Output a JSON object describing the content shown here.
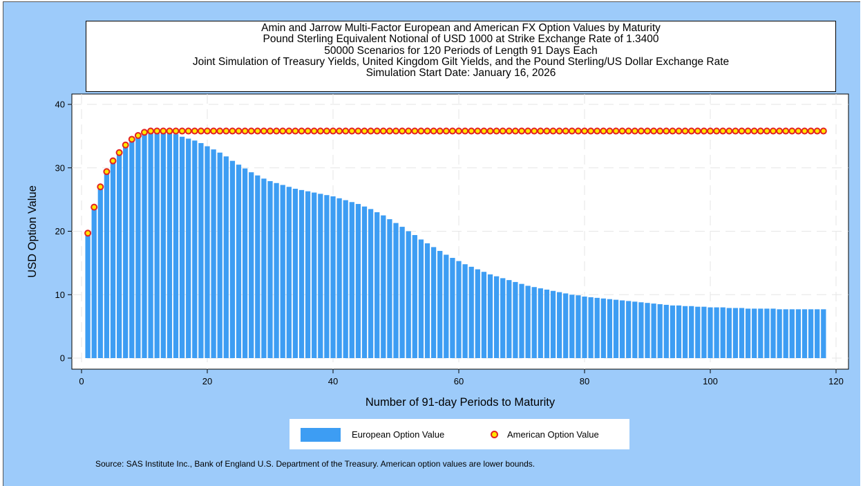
{
  "title_lines": [
    "Amin and Jarrow Multi-Factor European and American FX Option Values by Maturity",
    "Pound Sterling Equivalent Notional of USD 1000 at Strike Exchange Rate of  1.3400",
    "50000 Scenarios for 120 Periods of Length 91 Days Each",
    "Joint Simulation of Treasury Yields, United Kingdom Gilt Yields, and the Pound Sterling/US Dollar Exchange Rate",
    "Simulation Start Date: January 16, 2026"
  ],
  "chart_data": {
    "type": "bar",
    "xlabel": "Number of 91-day Periods to Maturity",
    "ylabel": "USD Option Value",
    "xlim": [
      0,
      120
    ],
    "ylim": [
      0,
      40
    ],
    "x_ticks": [
      "0",
      "20",
      "40",
      "60",
      "80",
      "100",
      "120"
    ],
    "y_ticks": [
      "0",
      "10",
      "20",
      "30",
      "40"
    ],
    "grid": true,
    "legend_position": "bottom",
    "colors": {
      "european": "#3d9df3",
      "american_fill": "#ffe600",
      "american_edge": "#e32222",
      "background": "#9dcbfa",
      "plot_area": "#ffffff"
    },
    "x": [
      1,
      2,
      3,
      4,
      5,
      6,
      7,
      8,
      9,
      10,
      11,
      12,
      13,
      14,
      15,
      16,
      17,
      18,
      19,
      20,
      21,
      22,
      23,
      24,
      25,
      26,
      27,
      28,
      29,
      30,
      31,
      32,
      33,
      34,
      35,
      36,
      37,
      38,
      39,
      40,
      41,
      42,
      43,
      44,
      45,
      46,
      47,
      48,
      49,
      50,
      51,
      52,
      53,
      54,
      55,
      56,
      57,
      58,
      59,
      60,
      61,
      62,
      63,
      64,
      65,
      66,
      67,
      68,
      69,
      70,
      71,
      72,
      73,
      74,
      75,
      76,
      77,
      78,
      79,
      80,
      81,
      82,
      83,
      84,
      85,
      86,
      87,
      88,
      89,
      90,
      91,
      92,
      93,
      94,
      95,
      96,
      97,
      98,
      99,
      100,
      101,
      102,
      103,
      104,
      105,
      106,
      107,
      108,
      109,
      110,
      111,
      112,
      113,
      114,
      115,
      116,
      117,
      118
    ],
    "series": [
      {
        "name": "European Option Value",
        "type": "bar",
        "values": [
          19.7,
          23.8,
          27.0,
          29.4,
          31.1,
          32.4,
          33.5,
          34.4,
          35.0,
          35.5,
          35.7,
          35.8,
          35.8,
          35.6,
          35.3,
          34.9,
          34.6,
          34.3,
          33.9,
          33.4,
          32.9,
          32.4,
          31.8,
          31.1,
          30.5,
          29.9,
          29.3,
          28.8,
          28.3,
          27.9,
          27.6,
          27.3,
          27.0,
          26.7,
          26.5,
          26.3,
          26.1,
          25.9,
          25.7,
          25.5,
          25.2,
          24.9,
          24.6,
          24.3,
          23.9,
          23.5,
          23.0,
          22.5,
          21.9,
          21.3,
          20.7,
          20.0,
          19.4,
          18.7,
          18.1,
          17.5,
          16.9,
          16.3,
          15.8,
          15.3,
          14.8,
          14.4,
          14.0,
          13.6,
          13.2,
          12.9,
          12.6,
          12.3,
          12.0,
          11.7,
          11.4,
          11.2,
          11.0,
          10.8,
          10.6,
          10.4,
          10.2,
          10.0,
          9.9,
          9.7,
          9.6,
          9.5,
          9.4,
          9.3,
          9.2,
          9.1,
          9.0,
          8.9,
          8.8,
          8.7,
          8.6,
          8.5,
          8.4,
          8.3,
          8.3,
          8.2,
          8.2,
          8.1,
          8.1,
          8.0,
          8.0,
          8.0,
          7.9,
          7.9,
          7.9,
          7.8,
          7.8,
          7.8,
          7.8,
          7.8,
          7.7,
          7.7,
          7.7,
          7.7,
          7.7,
          7.7,
          7.7,
          7.7
        ]
      },
      {
        "name": "American Option Value",
        "type": "scatter",
        "values": [
          19.7,
          23.8,
          27.0,
          29.4,
          31.1,
          32.4,
          33.6,
          34.5,
          35.1,
          35.6,
          35.8,
          35.8,
          35.8,
          35.8,
          35.8,
          35.8,
          35.8,
          35.8,
          35.8,
          35.8,
          35.8,
          35.8,
          35.8,
          35.8,
          35.8,
          35.8,
          35.8,
          35.8,
          35.8,
          35.8,
          35.8,
          35.8,
          35.8,
          35.8,
          35.8,
          35.8,
          35.8,
          35.8,
          35.8,
          35.8,
          35.8,
          35.8,
          35.8,
          35.8,
          35.8,
          35.8,
          35.8,
          35.8,
          35.8,
          35.8,
          35.8,
          35.8,
          35.8,
          35.8,
          35.8,
          35.8,
          35.8,
          35.8,
          35.8,
          35.8,
          35.8,
          35.8,
          35.8,
          35.8,
          35.8,
          35.8,
          35.8,
          35.8,
          35.8,
          35.8,
          35.8,
          35.8,
          35.8,
          35.8,
          35.8,
          35.8,
          35.8,
          35.8,
          35.8,
          35.8,
          35.8,
          35.8,
          35.8,
          35.8,
          35.8,
          35.8,
          35.8,
          35.8,
          35.8,
          35.8,
          35.8,
          35.8,
          35.8,
          35.8,
          35.8,
          35.8,
          35.8,
          35.8,
          35.8,
          35.8,
          35.8,
          35.8,
          35.8,
          35.8,
          35.8,
          35.8,
          35.8,
          35.8,
          35.8,
          35.8,
          35.8,
          35.8,
          35.8,
          35.8,
          35.8,
          35.8,
          35.8,
          35.8
        ]
      }
    ]
  },
  "legend": {
    "european_label": "European Option Value",
    "american_label": "American Option Value"
  },
  "source_note": "Source: SAS Institute Inc., Bank of England U.S. Department of the Treasury. American option values are lower bounds."
}
